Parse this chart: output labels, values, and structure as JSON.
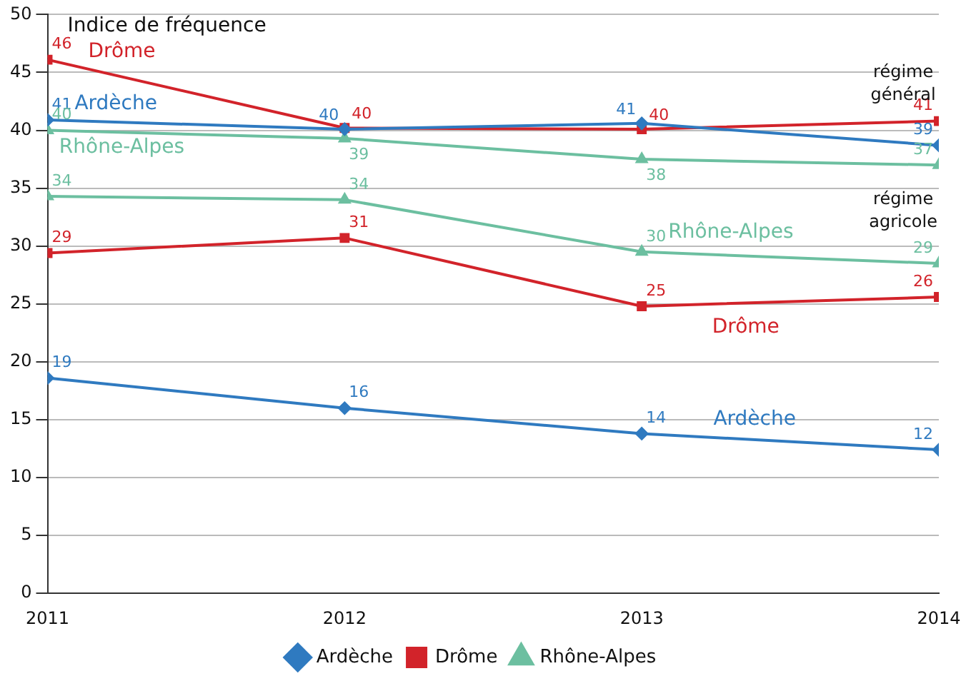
{
  "chart_data": {
    "type": "line",
    "ylabel": "Indice de fréquence",
    "x": [
      2011,
      2012,
      2013,
      2014
    ],
    "xlim": [
      2011,
      2014
    ],
    "xticks": [
      2011,
      2012,
      2013,
      2014
    ],
    "ylim": [
      0,
      50
    ],
    "yticks": [
      0,
      5,
      10,
      15,
      20,
      25,
      30,
      35,
      40,
      45,
      50
    ],
    "grid": "y",
    "legend": "bottom",
    "line_style": "solid",
    "series": [
      {
        "name": "Ardèche",
        "color": "#2f7ac0",
        "marker": "diamond",
        "values": [
          40.9,
          40.1,
          40.6,
          38.7
        ],
        "value_labels": [
          "41",
          "40",
          "41",
          "39"
        ]
      },
      {
        "name": "Drôme",
        "color": "#d2232a",
        "marker": "square",
        "values": [
          46.1,
          40.2,
          40.1,
          40.8
        ],
        "value_labels": [
          "46",
          "40",
          "40",
          "41"
        ]
      },
      {
        "name": "Rhône-Alpes",
        "color": "#6cbfa0",
        "marker": "triangle",
        "values": [
          40.0,
          39.3,
          37.5,
          37.0
        ],
        "value_labels": [
          "40",
          "39",
          "38",
          "37"
        ]
      },
      {
        "color": "#6cbfa0",
        "marker": "triangle",
        "values": [
          34.3,
          34.0,
          29.5,
          28.5
        ],
        "value_labels": [
          "34",
          "34",
          "30",
          "29"
        ]
      },
      {
        "color": "#d2232a",
        "marker": "square",
        "values": [
          29.4,
          30.7,
          24.8,
          25.6
        ],
        "value_labels": [
          "29",
          "31",
          "25",
          "26"
        ]
      },
      {
        "color": "#2f7ac0",
        "marker": "diamond",
        "values": [
          18.6,
          16.0,
          13.8,
          12.4
        ],
        "value_labels": [
          "19",
          "16",
          "14",
          "12"
        ]
      }
    ],
    "annotations": [
      "Drôme",
      "Ardèche",
      "Rhône-Alpes",
      "régime général",
      "Rhône-Alpes",
      "Drôme",
      "Ardèche",
      "régime agricole"
    ]
  }
}
